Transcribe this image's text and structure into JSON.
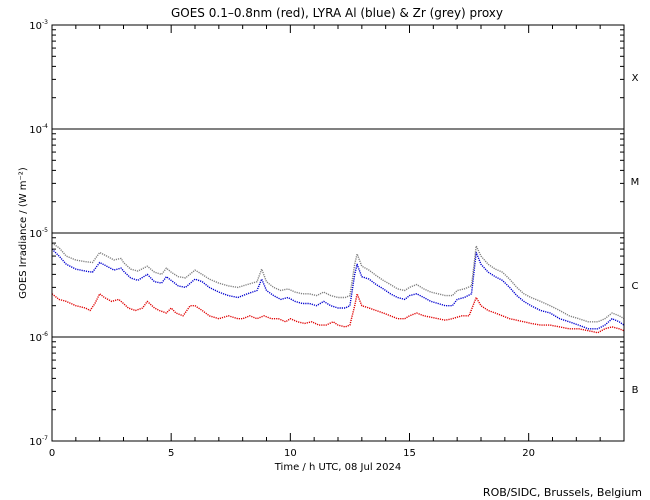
{
  "chart_data": {
    "type": "line",
    "title": "GOES 0.1–0.8nm (red), LYRA Al (blue) & Zr (grey) proxy",
    "xlabel": "Time / h UTC, 08 Jul 2024",
    "ylabel": "GOES Irradiance / (W m⁻²)",
    "xlim": [
      0,
      24
    ],
    "ylim": [
      1e-07,
      0.001
    ],
    "yscale": "log",
    "x_ticks": [
      0,
      5,
      10,
      15,
      20
    ],
    "x_tick_labels": [
      "0",
      "5",
      "10",
      "15",
      "20"
    ],
    "y_ticks": [
      {
        "value": 1e-07,
        "base": "10",
        "exp": "-7"
      },
      {
        "value": 1e-06,
        "base": "10",
        "exp": "-6"
      },
      {
        "value": 1e-05,
        "base": "10",
        "exp": "-5"
      },
      {
        "value": 0.0001,
        "base": "10",
        "exp": "-4"
      },
      {
        "value": 0.001,
        "base": "10",
        "exp": "-3"
      }
    ],
    "flare_class_lines": [
      1e-06,
      1e-05,
      0.0001
    ],
    "flare_classes": [
      {
        "label": "X",
        "level": 0.000316
      },
      {
        "label": "M",
        "level": 3.16e-05
      },
      {
        "label": "C",
        "level": 3.16e-06
      },
      {
        "label": "B",
        "level": 3.16e-07
      }
    ],
    "series": [
      {
        "name": "GOES 0.1–0.8nm",
        "color": "#e00000",
        "x": [
          0,
          0.3,
          0.6,
          1,
          1.4,
          1.6,
          1.8,
          2,
          2.2,
          2.5,
          2.8,
          3,
          3.2,
          3.5,
          3.8,
          4,
          4.3,
          4.5,
          4.8,
          5,
          5.2,
          5.5,
          5.8,
          6,
          6.3,
          6.6,
          7,
          7.4,
          7.8,
          8,
          8.3,
          8.6,
          8.9,
          9.2,
          9.5,
          9.8,
          10,
          10.3,
          10.6,
          10.9,
          11.2,
          11.5,
          11.8,
          12,
          12.3,
          12.5,
          12.7,
          12.8,
          13,
          13.3,
          13.6,
          13.9,
          14.2,
          14.5,
          14.8,
          15,
          15.3,
          15.6,
          15.9,
          16.2,
          16.5,
          16.8,
          17,
          17.2,
          17.5,
          17.8,
          18,
          18.3,
          18.6,
          18.9,
          19.2,
          19.5,
          19.8,
          20.1,
          20.5,
          20.9,
          21.3,
          21.7,
          22.1,
          22.5,
          22.9,
          23.2,
          23.5,
          23.8,
          24
        ],
        "y": [
          2.6e-06,
          2.3e-06,
          2.2e-06,
          2e-06,
          1.9e-06,
          1.8e-06,
          2.1e-06,
          2.6e-06,
          2.4e-06,
          2.2e-06,
          2.3e-06,
          2.1e-06,
          1.9e-06,
          1.8e-06,
          1.9e-06,
          2.2e-06,
          1.9e-06,
          1.8e-06,
          1.7e-06,
          1.9e-06,
          1.7e-06,
          1.6e-06,
          2e-06,
          2e-06,
          1.8e-06,
          1.6e-06,
          1.5e-06,
          1.6e-06,
          1.5e-06,
          1.5e-06,
          1.6e-06,
          1.5e-06,
          1.6e-06,
          1.5e-06,
          1.5e-06,
          1.4e-06,
          1.5e-06,
          1.4e-06,
          1.35e-06,
          1.4e-06,
          1.3e-06,
          1.3e-06,
          1.4e-06,
          1.3e-06,
          1.25e-06,
          1.3e-06,
          2e-06,
          2.6e-06,
          2e-06,
          1.9e-06,
          1.8e-06,
          1.7e-06,
          1.6e-06,
          1.5e-06,
          1.5e-06,
          1.6e-06,
          1.7e-06,
          1.6e-06,
          1.55e-06,
          1.5e-06,
          1.45e-06,
          1.5e-06,
          1.55e-06,
          1.6e-06,
          1.6e-06,
          2.4e-06,
          2e-06,
          1.8e-06,
          1.7e-06,
          1.6e-06,
          1.5e-06,
          1.45e-06,
          1.4e-06,
          1.35e-06,
          1.3e-06,
          1.3e-06,
          1.25e-06,
          1.2e-06,
          1.2e-06,
          1.15e-06,
          1.1e-06,
          1.2e-06,
          1.25e-06,
          1.2e-06,
          1.15e-06
        ]
      },
      {
        "name": "LYRA Al",
        "color": "#0000d0",
        "x": [
          0,
          0.3,
          0.6,
          1,
          1.4,
          1.7,
          2,
          2.3,
          2.6,
          2.9,
          3,
          3.3,
          3.6,
          4,
          4.3,
          4.6,
          4.8,
          5,
          5.3,
          5.6,
          6,
          6.3,
          6.6,
          7,
          7.4,
          7.8,
          8.2,
          8.6,
          8.8,
          9,
          9.3,
          9.6,
          9.9,
          10.2,
          10.5,
          10.8,
          11.1,
          11.4,
          11.7,
          12,
          12.3,
          12.5,
          12.7,
          12.8,
          13,
          13.3,
          13.6,
          13.9,
          14.2,
          14.5,
          14.8,
          15,
          15.3,
          15.6,
          15.9,
          16.2,
          16.5,
          16.8,
          17,
          17.3,
          17.6,
          17.8,
          18,
          18.3,
          18.6,
          18.9,
          19.2,
          19.5,
          19.8,
          20.1,
          20.5,
          20.9,
          21.3,
          21.7,
          22.1,
          22.5,
          22.9,
          23.2,
          23.5,
          23.8,
          24
        ],
        "y": [
          7e-06,
          6e-06,
          5e-06,
          4.5e-06,
          4.3e-06,
          4.2e-06,
          5.2e-06,
          4.8e-06,
          4.4e-06,
          4.6e-06,
          4.3e-06,
          3.7e-06,
          3.5e-06,
          4e-06,
          3.4e-06,
          3.3e-06,
          3.8e-06,
          3.5e-06,
          3.1e-06,
          3e-06,
          3.6e-06,
          3.4e-06,
          3e-06,
          2.7e-06,
          2.5e-06,
          2.4e-06,
          2.6e-06,
          2.8e-06,
          3.6e-06,
          2.8e-06,
          2.5e-06,
          2.3e-06,
          2.4e-06,
          2.2e-06,
          2.1e-06,
          2.1e-06,
          2e-06,
          2.2e-06,
          2e-06,
          1.9e-06,
          1.9e-06,
          2e-06,
          4e-06,
          5e-06,
          3.8e-06,
          3.6e-06,
          3.2e-06,
          2.9e-06,
          2.6e-06,
          2.4e-06,
          2.3e-06,
          2.5e-06,
          2.6e-06,
          2.4e-06,
          2.2e-06,
          2.1e-06,
          2e-06,
          2e-06,
          2.3e-06,
          2.4e-06,
          2.6e-06,
          6.5e-06,
          5e-06,
          4.2e-06,
          3.8e-06,
          3.5e-06,
          3e-06,
          2.5e-06,
          2.2e-06,
          2e-06,
          1.8e-06,
          1.7e-06,
          1.5e-06,
          1.4e-06,
          1.3e-06,
          1.2e-06,
          1.2e-06,
          1.3e-06,
          1.5e-06,
          1.4e-06,
          1.3e-06
        ]
      },
      {
        "name": "Zr",
        "color": "#808080",
        "x": [
          0,
          0.3,
          0.6,
          1,
          1.4,
          1.7,
          2,
          2.3,
          2.6,
          2.9,
          3,
          3.3,
          3.6,
          4,
          4.3,
          4.6,
          4.8,
          5,
          5.3,
          5.6,
          6,
          6.3,
          6.6,
          7,
          7.4,
          7.8,
          8.2,
          8.6,
          8.8,
          9,
          9.3,
          9.6,
          9.9,
          10.2,
          10.5,
          10.8,
          11.1,
          11.4,
          11.7,
          12,
          12.3,
          12.5,
          12.7,
          12.8,
          13,
          13.3,
          13.6,
          13.9,
          14.2,
          14.5,
          14.8,
          15,
          15.3,
          15.6,
          15.9,
          16.2,
          16.5,
          16.8,
          17,
          17.3,
          17.6,
          17.8,
          18,
          18.3,
          18.6,
          18.9,
          19.2,
          19.5,
          19.8,
          20.1,
          20.5,
          20.9,
          21.3,
          21.7,
          22.1,
          22.5,
          22.9,
          23.2,
          23.5,
          23.8,
          24
        ],
        "y": [
          8e-06,
          7.2e-06,
          6e-06,
          5.5e-06,
          5.3e-06,
          5.2e-06,
          6.5e-06,
          6e-06,
          5.5e-06,
          5.7e-06,
          5.2e-06,
          4.5e-06,
          4.3e-06,
          4.8e-06,
          4.2e-06,
          4e-06,
          4.6e-06,
          4.2e-06,
          3.8e-06,
          3.7e-06,
          4.4e-06,
          4e-06,
          3.6e-06,
          3.3e-06,
          3.1e-06,
          3e-06,
          3.2e-06,
          3.4e-06,
          4.5e-06,
          3.4e-06,
          3e-06,
          2.8e-06,
          2.9e-06,
          2.7e-06,
          2.6e-06,
          2.6e-06,
          2.5e-06,
          2.7e-06,
          2.5e-06,
          2.4e-06,
          2.4e-06,
          2.5e-06,
          5e-06,
          6.3e-06,
          4.8e-06,
          4.4e-06,
          3.9e-06,
          3.5e-06,
          3.2e-06,
          2.9e-06,
          2.8e-06,
          3e-06,
          3.2e-06,
          2.9e-06,
          2.7e-06,
          2.6e-06,
          2.5e-06,
          2.5e-06,
          2.8e-06,
          2.9e-06,
          3.1e-06,
          7.5e-06,
          6e-06,
          5e-06,
          4.5e-06,
          4.2e-06,
          3.6e-06,
          3e-06,
          2.6e-06,
          2.4e-06,
          2.2e-06,
          2e-06,
          1.8e-06,
          1.6e-06,
          1.5e-06,
          1.4e-06,
          1.4e-06,
          1.5e-06,
          1.7e-06,
          1.6e-06,
          1.5e-06
        ]
      }
    ]
  },
  "credit": "ROB/SIDC, Brussels, Belgium"
}
